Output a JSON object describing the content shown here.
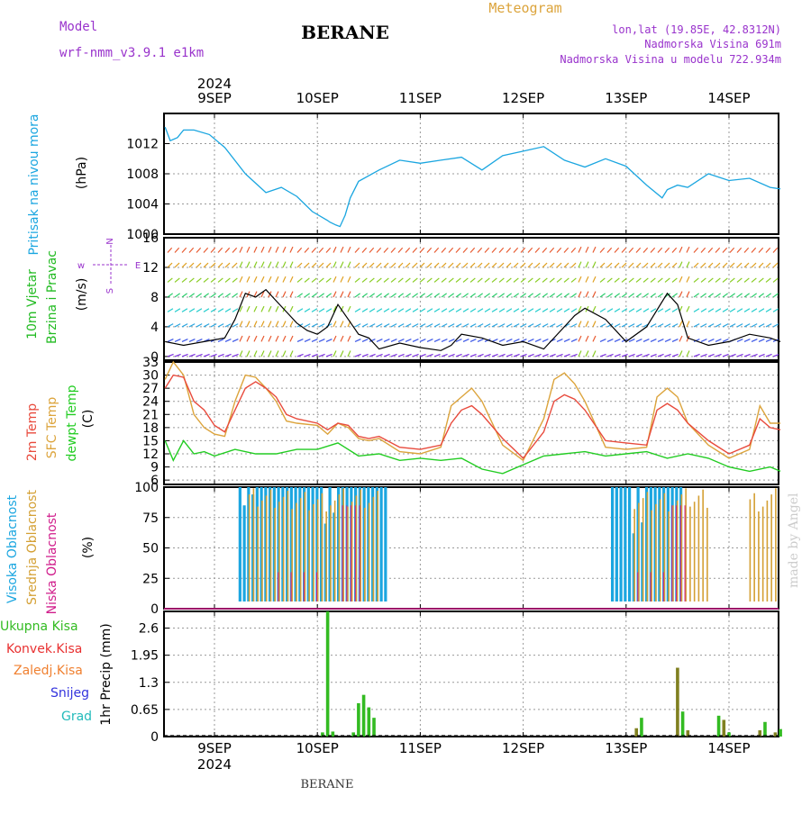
{
  "header": {
    "model_label": "Model",
    "model_name": "wrf-nmm_v3.9.1  e1km",
    "city": "BERANE",
    "meteogram": "Meteogram",
    "coords": "lon,lat (19.85E, 42.8312N)",
    "elevation": "Nadmorska Visina 691m",
    "model_elevation": "Nadmorska Visina u modelu 722.934m",
    "year_top": "2024",
    "year_bottom": "2024",
    "footer_city": "BERANE",
    "watermark": "made by Angel"
  },
  "colors": {
    "pressure": "#1ba6e0",
    "wind_label": "#22bb22",
    "temp2m": "#e84a3c",
    "sfc": "#dca43c",
    "dew": "#22cc22",
    "cloud_high": "#1ba6e0",
    "cloud_mid": "#d4a034",
    "cloud_low": "#d01c8b",
    "precip_total": "#33bb22",
    "precip_conv": "#e83030",
    "precip_frozen": "#f08030",
    "precip_snow": "#3333dd",
    "precip_grad": "#22bbbb",
    "axis_text": "#000000",
    "purple_text": "#9933cc"
  },
  "chart_data": [
    {
      "type": "line",
      "id": "pressure",
      "ylabel_main": "Pritisak na nivou mora",
      "ylabel_unit": "(hPa)",
      "ylim": [
        1000,
        1016
      ],
      "yticks": [
        1004,
        1008,
        1012
      ],
      "bottom_tick_label": "1000",
      "x_days": [
        "9SEP",
        "10SEP",
        "11SEP",
        "12SEP",
        "13SEP",
        "14SEP"
      ],
      "grid": true,
      "series": [
        {
          "x": [
            -0.48,
            -0.43,
            -0.36,
            -0.3,
            -0.2,
            -0.05,
            0.1,
            0.3,
            0.5,
            0.65,
            0.8,
            0.95,
            1.1,
            1.12,
            1.18,
            1.22,
            1.27,
            1.32,
            1.4,
            1.6,
            1.8,
            2.0,
            2.2,
            2.4,
            2.6,
            2.8,
            3.0,
            3.2,
            3.4,
            3.6,
            3.8,
            4.0,
            4.2,
            4.35,
            4.4,
            4.5,
            4.6,
            4.8,
            5.0,
            5.2,
            5.4,
            5.5
          ],
          "values": [
            1014.2,
            1012.4,
            1012.8,
            1013.8,
            1013.8,
            1013.2,
            1011.5,
            1008,
            1005.5,
            1006.2,
            1005.0,
            1003.0,
            1001.8,
            1001.6,
            1001.2,
            1001.0,
            1002.5,
            1004.8,
            1007.0,
            1008.5,
            1009.8,
            1009.4,
            1009.8,
            1010.2,
            1008.5,
            1010.4,
            1011.0,
            1011.6,
            1009.8,
            1008.9,
            1010.0,
            1009.0,
            1006.5,
            1004.8,
            1005.9,
            1006.5,
            1006.2,
            1008.0,
            1007.1,
            1007.4,
            1006.2,
            1006.0
          ]
        }
      ]
    },
    {
      "type": "line",
      "id": "wind",
      "ylabel_main": "10m Vjetar",
      "ylabel_sub": "Brzina i Pravac",
      "ylabel_unit": "(m/s)",
      "compass_label": "N",
      "compass_w": "w",
      "compass_e": "E",
      "compass_s": "S",
      "ylim": [
        -0.5,
        16
      ],
      "yticks": [
        0,
        4,
        8,
        12,
        16
      ],
      "grid": true,
      "series": [
        {
          "name": "speed",
          "x": [
            -0.48,
            -0.3,
            -0.1,
            0.1,
            0.2,
            0.3,
            0.4,
            0.5,
            0.6,
            0.7,
            0.8,
            0.9,
            1.0,
            1.1,
            1.2,
            1.3,
            1.4,
            1.5,
            1.6,
            1.8,
            2.0,
            2.2,
            2.3,
            2.4,
            2.6,
            2.8,
            3.0,
            3.2,
            3.4,
            3.5,
            3.6,
            3.8,
            4.0,
            4.2,
            4.4,
            4.5,
            4.6,
            4.8,
            5.0,
            5.2,
            5.4,
            5.5
          ],
          "values": [
            2.0,
            1.5,
            2.0,
            2.5,
            5.0,
            8.5,
            8.0,
            9.0,
            7.5,
            6.0,
            4.5,
            3.5,
            3.0,
            4.0,
            7.0,
            5.0,
            3.0,
            2.5,
            1.0,
            1.8,
            1.2,
            0.8,
            1.5,
            3.0,
            2.5,
            1.5,
            2.0,
            1.0,
            4.0,
            5.5,
            6.5,
            5.0,
            2.0,
            4.0,
            8.5,
            7.0,
            2.5,
            1.5,
            2.0,
            3.0,
            2.5,
            2.0
          ]
        }
      ]
    },
    {
      "type": "line",
      "id": "temperature",
      "ylabel_a": "2m Temp",
      "ylabel_b": "SFC Temp",
      "ylabel_c": "dewpt Temp",
      "ylabel_unit": "(C)",
      "ylim": [
        5,
        33
      ],
      "yticks": [
        6,
        9,
        12,
        15,
        18,
        21,
        24,
        27,
        30,
        33
      ],
      "grid": true,
      "series": [
        {
          "name": "2m Temp",
          "x": [
            -0.48,
            -0.4,
            -0.3,
            -0.2,
            -0.1,
            0.0,
            0.1,
            0.2,
            0.3,
            0.4,
            0.5,
            0.6,
            0.7,
            0.8,
            1.0,
            1.1,
            1.2,
            1.3,
            1.4,
            1.5,
            1.6,
            1.8,
            2.0,
            2.2,
            2.3,
            2.4,
            2.5,
            2.6,
            2.8,
            3.0,
            3.2,
            3.3,
            3.4,
            3.5,
            3.6,
            3.8,
            4.0,
            4.2,
            4.3,
            4.4,
            4.5,
            4.6,
            4.8,
            5.0,
            5.2,
            5.3,
            5.4,
            5.5
          ],
          "values": [
            27.0,
            30.0,
            29.5,
            24.0,
            22.0,
            18.5,
            17.0,
            22.0,
            27.0,
            28.5,
            27.0,
            25.0,
            21.0,
            20.0,
            19.0,
            17.5,
            19.0,
            18.5,
            16.0,
            15.5,
            16.0,
            13.5,
            13.0,
            14.0,
            19.0,
            22.0,
            23.0,
            21.0,
            15.5,
            11.0,
            17.0,
            24.0,
            25.5,
            24.5,
            22.0,
            15.0,
            14.5,
            14.0,
            22.0,
            23.5,
            22.0,
            19.0,
            15.0,
            12.0,
            14.0,
            20.0,
            18.0,
            17.5
          ]
        },
        {
          "name": "SFC Temp",
          "x": [
            -0.48,
            -0.4,
            -0.3,
            -0.2,
            -0.1,
            0.0,
            0.1,
            0.2,
            0.3,
            0.4,
            0.5,
            0.6,
            0.7,
            0.8,
            1.0,
            1.1,
            1.2,
            1.3,
            1.4,
            1.5,
            1.6,
            1.8,
            2.0,
            2.2,
            2.3,
            2.4,
            2.5,
            2.6,
            2.8,
            3.0,
            3.2,
            3.3,
            3.4,
            3.5,
            3.6,
            3.8,
            4.0,
            4.2,
            4.3,
            4.4,
            4.5,
            4.6,
            4.8,
            5.0,
            5.2,
            5.3,
            5.4,
            5.5
          ],
          "values": [
            29.0,
            33.0,
            30.0,
            21.0,
            18.0,
            16.5,
            16.0,
            24.0,
            30.0,
            29.5,
            27.0,
            24.0,
            19.5,
            19.0,
            18.5,
            16.5,
            19.0,
            18.0,
            15.5,
            15.0,
            15.5,
            12.5,
            12.0,
            13.5,
            23.0,
            25.0,
            27.0,
            24.0,
            14.0,
            10.5,
            20.0,
            29.0,
            30.5,
            28.0,
            24.0,
            13.5,
            13.0,
            13.5,
            25.0,
            27.0,
            25.0,
            19.0,
            14.0,
            11.0,
            13.0,
            23.0,
            19.0,
            19.0
          ]
        },
        {
          "name": "dewpt Temp",
          "x": [
            -0.48,
            -0.4,
            -0.3,
            -0.2,
            -0.1,
            0.0,
            0.2,
            0.4,
            0.6,
            0.8,
            1.0,
            1.2,
            1.4,
            1.6,
            1.8,
            2.0,
            2.2,
            2.4,
            2.6,
            2.8,
            3.0,
            3.2,
            3.4,
            3.6,
            3.8,
            4.0,
            4.2,
            4.4,
            4.6,
            4.8,
            5.0,
            5.2,
            5.4,
            5.5
          ],
          "values": [
            15.0,
            10.5,
            15.0,
            12.0,
            12.5,
            11.5,
            13.0,
            12.0,
            12.0,
            13.0,
            13.0,
            14.5,
            11.5,
            12.0,
            10.5,
            11.0,
            10.5,
            11.0,
            8.5,
            7.5,
            9.5,
            11.5,
            12.0,
            12.5,
            11.5,
            12.0,
            12.5,
            11.0,
            12.0,
            11.0,
            9.0,
            8.0,
            9.0,
            8.0
          ]
        }
      ]
    },
    {
      "type": "bar",
      "id": "clouds",
      "ylabel_a": "Visoka Oblacnost",
      "ylabel_b": "Srednja Oblacnost",
      "ylabel_c": "Niska Oblacnost",
      "ylabel_unit": "(%)",
      "ylim": [
        0,
        100
      ],
      "yticks": [
        0,
        25,
        50,
        75,
        100
      ],
      "grid": true,
      "high_on": [
        [
          0.22,
          1.68
        ],
        [
          3.82,
          4.55
        ]
      ],
      "mid_on": [
        [
          0.28,
          1.6
        ],
        [
          4.05,
          4.8
        ],
        [
          5.15,
          5.5
        ]
      ],
      "low_on": [
        [
          1.2,
          1.4
        ],
        [
          4.4,
          4.6
        ]
      ]
    },
    {
      "type": "bar",
      "id": "precip",
      "ylabel_unit": "1hr Precip (mm)",
      "legend": [
        "Ukupna  Kisa",
        "Konvek.Kisa",
        "Zaledj.Kisa",
        "Snijeg",
        "Grad"
      ],
      "ylim": [
        0,
        3.0
      ],
      "yticks": [
        0,
        0.65,
        1.3,
        1.95,
        2.6
      ],
      "ytick_labels": [
        "0",
        "0.65",
        "1.3",
        "1.95",
        "2.6"
      ],
      "grid": true,
      "x": [
        1.05,
        1.1,
        1.15,
        1.35,
        1.4,
        1.45,
        1.5,
        1.55,
        4.1,
        4.15,
        4.5,
        4.55,
        4.6,
        4.9,
        4.95,
        5.0,
        5.3,
        5.35,
        5.45,
        5.5
      ],
      "values": [
        0.1,
        3.0,
        0.12,
        0.1,
        0.8,
        1.0,
        0.7,
        0.45,
        0.2,
        0.45,
        1.65,
        0.6,
        0.15,
        0.5,
        0.4,
        0.1,
        0.15,
        0.35,
        0.1,
        0.18
      ]
    }
  ]
}
